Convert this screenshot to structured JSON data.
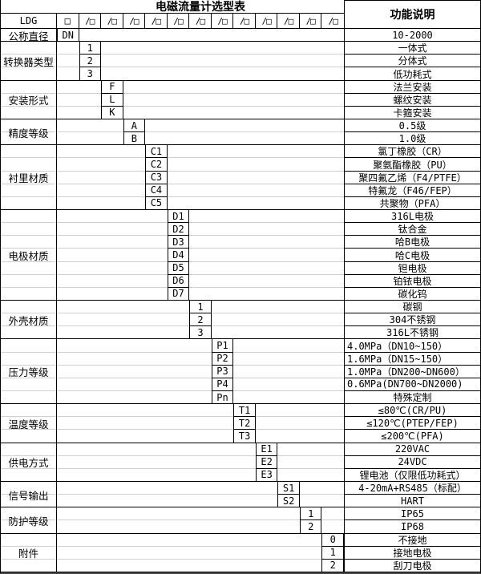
{
  "title": "电磁流量计选型表",
  "header": {
    "model_prefix": "LDG",
    "box": "□",
    "slot": "/□",
    "slot_count": 12,
    "function_col": "功能说明"
  },
  "colors": {
    "border": "#000000",
    "faint_grid": "#cfcfcf",
    "background": "#ffffff",
    "text": "#000000"
  },
  "groups": [
    {
      "label": "公称直径",
      "col": 0,
      "rows": [
        {
          "code": "DN",
          "desc": "10-2000"
        }
      ]
    },
    {
      "label": "转换器类型",
      "col": 1,
      "rows": [
        {
          "code": "1",
          "desc": "一体式"
        },
        {
          "code": "2",
          "desc": "分体式"
        },
        {
          "code": "3",
          "desc": "低功耗式"
        }
      ]
    },
    {
      "label": "安装形式",
      "col": 2,
      "rows": [
        {
          "code": "F",
          "desc": "法兰安装"
        },
        {
          "code": "L",
          "desc": "螺纹安装"
        },
        {
          "code": "K",
          "desc": "卡箍安装"
        }
      ]
    },
    {
      "label": "精度等级",
      "col": 3,
      "rows": [
        {
          "code": "A",
          "desc": "0.5级"
        },
        {
          "code": "B",
          "desc": "1.0级"
        }
      ]
    },
    {
      "label": "衬里材质",
      "col": 4,
      "rows": [
        {
          "code": "C1",
          "desc": "氯丁橡胶（CR）"
        },
        {
          "code": "C2",
          "desc": "聚氨酯橡胶（PU）"
        },
        {
          "code": "C3",
          "desc": "聚四氟乙烯（F4/PTFE）"
        },
        {
          "code": "C4",
          "desc": "特氟龙（F46/FEP）"
        },
        {
          "code": "C5",
          "desc": "共聚物（PFA）"
        }
      ]
    },
    {
      "label": "电极材质",
      "col": 5,
      "rows": [
        {
          "code": "D1",
          "desc": "316L电极"
        },
        {
          "code": "D2",
          "desc": "钛合金"
        },
        {
          "code": "D3",
          "desc": "哈B电极"
        },
        {
          "code": "D4",
          "desc": "哈C电极"
        },
        {
          "code": "D5",
          "desc": "钽电极"
        },
        {
          "code": "D6",
          "desc": "铂铱电极"
        },
        {
          "code": "D7",
          "desc": "碳化钨"
        }
      ]
    },
    {
      "label": "外壳材质",
      "col": 6,
      "rows": [
        {
          "code": "1",
          "desc": "碳钢"
        },
        {
          "code": "2",
          "desc": "304不锈钢"
        },
        {
          "code": "3",
          "desc": "316L不锈钢"
        }
      ]
    },
    {
      "label": "压力等级",
      "col": 7,
      "rows": [
        {
          "code": "P1",
          "desc": "4.0MPa（DN10~150）",
          "align": "left"
        },
        {
          "code": "P2",
          "desc": "1.6MPa（DN15~150）",
          "align": "left"
        },
        {
          "code": "P3",
          "desc": "1.0MPa（DN200~DN600）",
          "align": "left"
        },
        {
          "code": "P4",
          "desc": "0.6MPa(DN700~DN2000)",
          "align": "left"
        },
        {
          "code": "Pn",
          "desc": "特殊定制"
        }
      ]
    },
    {
      "label": "温度等级",
      "col": 8,
      "rows": [
        {
          "code": "T1",
          "desc": "≤80℃(CR/PU)"
        },
        {
          "code": "T2",
          "desc": "≤120℃(PTEP/FEP)"
        },
        {
          "code": "T3",
          "desc": "≤200℃(PFA)"
        }
      ]
    },
    {
      "label": "供电方式",
      "col": 9,
      "rows": [
        {
          "code": "E1",
          "desc": "220VAC"
        },
        {
          "code": "E2",
          "desc": "24VDC"
        },
        {
          "code": "E3",
          "desc": "锂电池（仅限低功耗式）"
        }
      ]
    },
    {
      "label": "信号输出",
      "col": 10,
      "rows": [
        {
          "code": "S1",
          "desc": "4-20mA+RS485（标配）"
        },
        {
          "code": "S2",
          "desc": "HART"
        }
      ]
    },
    {
      "label": "防护等级",
      "col": 11,
      "rows": [
        {
          "code": "1",
          "desc": "IP65"
        },
        {
          "code": "2",
          "desc": "IP68"
        }
      ]
    },
    {
      "label": "附件",
      "col": 12,
      "rows": [
        {
          "code": "0",
          "desc": "不接地"
        },
        {
          "code": "1",
          "desc": "接地电极"
        },
        {
          "code": "2",
          "desc": "刮刀电极"
        }
      ]
    }
  ]
}
